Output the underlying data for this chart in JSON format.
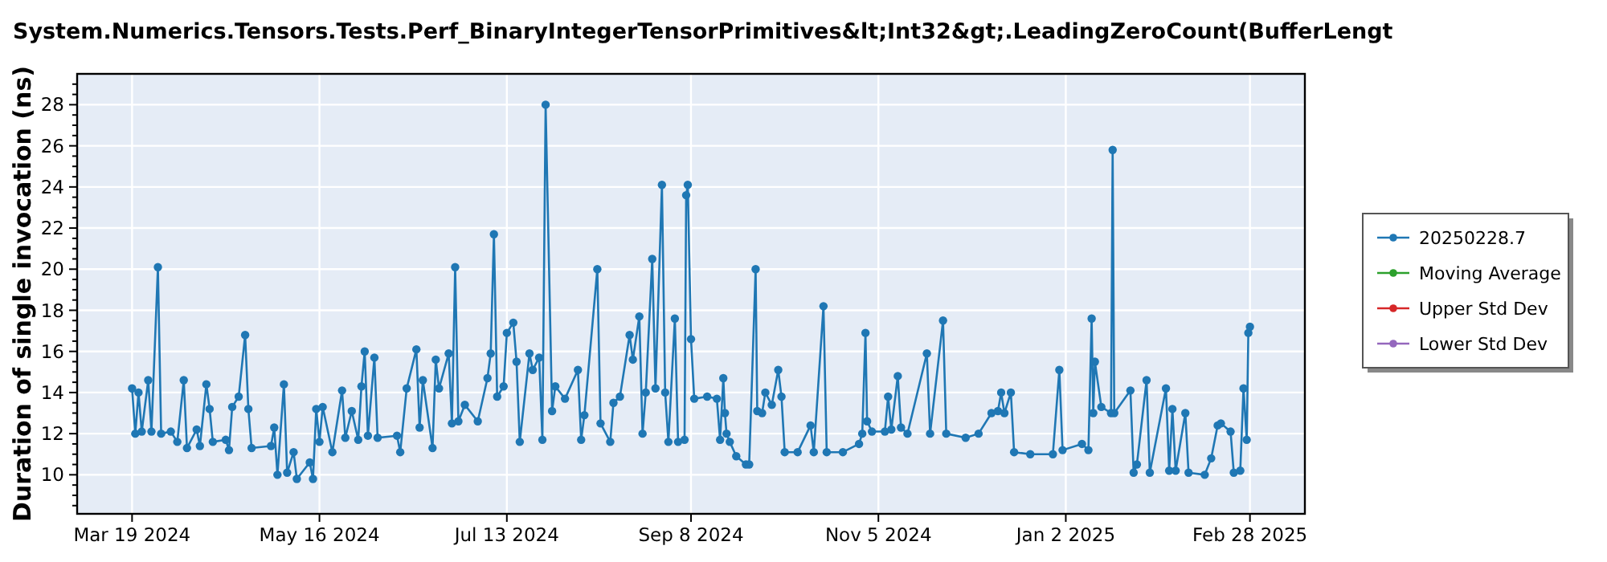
{
  "chart_data": {
    "type": "line",
    "title": "System.Numerics.Tensors.Tests.Perf_BinaryIntegerTensorPrimitives&lt;Int32&gt;.LeadingZeroCount(BufferLengt",
    "ylabel": "Duration of single invocation (ns)",
    "xlim": [
      "2024-03-02",
      "2025-03-17"
    ],
    "xticks": [
      {
        "value": "2024-03-19",
        "label": "Mar 19 2024"
      },
      {
        "value": "2024-05-16",
        "label": "May 16 2024"
      },
      {
        "value": "2024-07-13",
        "label": "Jul 13 2024"
      },
      {
        "value": "2024-09-08",
        "label": "Sep 8 2024"
      },
      {
        "value": "2024-11-05",
        "label": "Nov 5 2024"
      },
      {
        "value": "2025-01-02",
        "label": "Jan 2 2025"
      },
      {
        "value": "2025-02-28",
        "label": "Feb 28 2025"
      }
    ],
    "ylim": [
      8.1,
      29.5
    ],
    "yticks": [
      {
        "value": 8.5,
        "label": null
      },
      {
        "value": 9,
        "label": null
      },
      {
        "value": 9.5,
        "label": null
      },
      10,
      {
        "value": 10.5,
        "label": null
      },
      {
        "value": 11,
        "label": null
      },
      {
        "value": 11.5,
        "label": null
      },
      12,
      {
        "value": 12.5,
        "label": null
      },
      {
        "value": 13,
        "label": null
      },
      {
        "value": 13.5,
        "label": null
      },
      14,
      {
        "value": 14.5,
        "label": null
      },
      {
        "value": 15,
        "label": null
      },
      {
        "value": 15.5,
        "label": null
      },
      16,
      {
        "value": 16.5,
        "label": null
      },
      {
        "value": 17,
        "label": null
      },
      {
        "value": 17.5,
        "label": null
      },
      18,
      {
        "value": 18.5,
        "label": null
      },
      {
        "value": 19,
        "label": null
      },
      {
        "value": 19.5,
        "label": null
      },
      20,
      {
        "value": 20.5,
        "label": null
      },
      {
        "value": 21,
        "label": null
      },
      {
        "value": 21.5,
        "label": null
      },
      22,
      {
        "value": 22.5,
        "label": null
      },
      {
        "value": 23,
        "label": null
      },
      {
        "value": 23.5,
        "label": null
      },
      24,
      {
        "value": 24.5,
        "label": null
      },
      {
        "value": 25,
        "label": null
      },
      {
        "value": 25.5,
        "label": null
      },
      26,
      {
        "value": 26.5,
        "label": null
      },
      {
        "value": 27,
        "label": null
      },
      {
        "value": 27.5,
        "label": null
      },
      28,
      {
        "value": 28.5,
        "label": null
      },
      {
        "value": 29,
        "label": null
      }
    ],
    "grid": true,
    "legend": "right",
    "marker": "circle",
    "series": [
      {
        "name": "20250228.7",
        "color": "#1f77b4",
        "x": [
          "2024-03-19",
          "2024-03-20",
          "2024-03-21",
          "2024-03-22",
          "2024-03-24",
          "2024-03-25",
          "2024-03-27",
          "2024-03-28",
          "2024-03-31",
          "2024-04-02",
          "2024-04-04",
          "2024-04-05",
          "2024-04-08",
          "2024-04-09",
          "2024-04-11",
          "2024-04-12",
          "2024-04-13",
          "2024-04-17",
          "2024-04-18",
          "2024-04-19",
          "2024-04-21",
          "2024-04-23",
          "2024-04-24",
          "2024-04-25",
          "2024-05-01",
          "2024-05-02",
          "2024-05-03",
          "2024-05-05",
          "2024-05-06",
          "2024-05-08",
          "2024-05-09",
          "2024-05-13",
          "2024-05-14",
          "2024-05-15",
          "2024-05-16",
          "2024-05-17",
          "2024-05-20",
          "2024-05-23",
          "2024-05-24",
          "2024-05-26",
          "2024-05-28",
          "2024-05-29",
          "2024-05-30",
          "2024-05-31",
          "2024-06-02",
          "2024-06-03",
          "2024-06-09",
          "2024-06-10",
          "2024-06-12",
          "2024-06-15",
          "2024-06-16",
          "2024-06-17",
          "2024-06-20",
          "2024-06-21",
          "2024-06-22",
          "2024-06-25",
          "2024-06-26",
          "2024-06-27",
          "2024-06-28",
          "2024-06-30",
          "2024-07-04",
          "2024-07-07",
          "2024-07-08",
          "2024-07-09",
          "2024-07-10",
          "2024-07-12",
          "2024-07-13",
          "2024-07-15",
          "2024-07-16",
          "2024-07-17",
          "2024-07-20",
          "2024-07-21",
          "2024-07-23",
          "2024-07-24",
          "2024-07-25",
          "2024-07-27",
          "2024-07-28",
          "2024-07-31",
          "2024-08-04",
          "2024-08-05",
          "2024-08-06",
          "2024-08-10",
          "2024-08-11",
          "2024-08-14",
          "2024-08-15",
          "2024-08-17",
          "2024-08-20",
          "2024-08-21",
          "2024-08-23",
          "2024-08-24",
          "2024-08-25",
          "2024-08-27",
          "2024-08-28",
          "2024-08-30",
          "2024-08-31",
          "2024-09-01",
          "2024-09-03",
          "2024-09-04",
          "2024-09-06",
          "2024-09-06T12:00",
          "2024-09-07",
          "2024-09-08",
          "2024-09-09",
          "2024-09-13",
          "2024-09-16",
          "2024-09-17",
          "2024-09-18",
          "2024-09-18T12:00",
          "2024-09-19",
          "2024-09-20",
          "2024-09-22",
          "2024-09-25",
          "2024-09-26",
          "2024-09-28",
          "2024-09-28T12:00",
          "2024-09-30",
          "2024-10-01",
          "2024-10-03",
          "2024-10-05",
          "2024-10-06",
          "2024-10-07",
          "2024-10-11",
          "2024-10-15",
          "2024-10-16",
          "2024-10-19",
          "2024-10-20",
          "2024-10-25",
          "2024-10-30",
          "2024-10-31",
          "2024-11-01",
          "2024-11-01T12:00",
          "2024-11-03",
          "2024-11-07",
          "2024-11-08",
          "2024-11-09",
          "2024-11-11",
          "2024-11-12",
          "2024-11-14",
          "2024-11-20",
          "2024-11-21",
          "2024-11-25",
          "2024-11-26",
          "2024-12-02",
          "2024-12-06",
          "2024-12-10",
          "2024-12-12",
          "2024-12-13",
          "2024-12-14",
          "2024-12-16",
          "2024-12-17",
          "2024-12-22",
          "2024-12-29",
          "2024-12-31",
          "2025-01-01",
          "2025-01-07",
          "2025-01-09",
          "2025-01-10",
          "2025-01-10T12:00",
          "2025-01-11",
          "2025-01-13",
          "2025-01-16",
          "2025-01-16T12:00",
          "2025-01-17",
          "2025-01-22",
          "2025-01-23",
          "2025-01-24",
          "2025-01-27",
          "2025-01-28",
          "2025-02-02",
          "2025-02-03",
          "2025-02-04",
          "2025-02-05",
          "2025-02-08",
          "2025-02-09",
          "2025-02-14",
          "2025-02-16",
          "2025-02-18",
          "2025-02-19",
          "2025-02-22",
          "2025-02-23",
          "2025-02-25",
          "2025-02-26",
          "2025-02-27",
          "2025-02-27T12:00",
          "2025-02-28"
        ],
        "values": [
          14.2,
          12.0,
          14.0,
          12.1,
          14.6,
          12.1,
          20.1,
          12.0,
          12.1,
          11.6,
          14.6,
          11.3,
          12.2,
          11.4,
          14.4,
          13.2,
          11.6,
          11.7,
          11.2,
          13.3,
          13.8,
          16.8,
          13.2,
          11.3,
          11.4,
          12.3,
          10.0,
          14.4,
          10.1,
          11.1,
          9.8,
          10.6,
          9.8,
          13.2,
          11.6,
          13.3,
          11.1,
          14.1,
          11.8,
          13.1,
          11.7,
          14.3,
          16.0,
          11.9,
          15.7,
          11.8,
          11.9,
          11.1,
          14.2,
          16.1,
          12.3,
          14.6,
          11.3,
          15.6,
          14.2,
          15.9,
          12.5,
          20.1,
          12.6,
          13.4,
          12.6,
          14.7,
          15.9,
          21.7,
          13.8,
          14.3,
          16.9,
          17.4,
          15.5,
          11.6,
          15.9,
          15.1,
          15.7,
          11.7,
          28.0,
          13.1,
          14.3,
          13.7,
          15.1,
          11.7,
          12.9,
          20.0,
          12.5,
          11.6,
          13.5,
          13.8,
          16.8,
          15.6,
          17.7,
          12.0,
          14.0,
          20.5,
          14.2,
          24.1,
          14.0,
          11.6,
          17.6,
          11.6,
          11.7,
          23.6,
          24.1,
          16.6,
          13.7,
          13.8,
          13.7,
          11.7,
          14.7,
          13.0,
          12.0,
          11.6,
          10.9,
          10.5,
          10.5,
          20.0,
          13.1,
          13.0,
          14.0,
          13.4,
          15.1,
          13.8,
          11.1,
          11.1,
          12.4,
          11.1,
          18.2,
          11.1,
          11.1,
          11.5,
          12.0,
          16.9,
          12.6,
          12.1,
          12.1,
          13.8,
          12.2,
          14.8,
          12.3,
          12.0,
          15.9,
          12.0,
          17.5,
          12.0,
          11.8,
          12.0,
          13.0,
          13.1,
          14.0,
          13.0,
          14.0,
          11.1,
          11.0,
          11.0,
          15.1,
          11.2,
          11.5,
          11.2,
          17.6,
          13.0,
          15.5,
          13.3,
          13.0,
          25.8,
          13.0,
          14.1,
          10.1,
          10.5,
          14.6,
          10.1,
          14.2,
          10.2,
          13.2,
          10.2,
          13.0,
          10.1,
          10.0,
          10.8,
          12.4,
          12.5,
          12.1,
          10.1,
          10.2,
          14.2,
          11.7,
          16.9,
          17.2
        ]
      },
      {
        "name": "Moving Average",
        "color": "#2ca02c"
      },
      {
        "name": "Upper Std Dev",
        "color": "#d62728"
      },
      {
        "name": "Lower Std Dev",
        "color": "#9467bd"
      }
    ]
  }
}
